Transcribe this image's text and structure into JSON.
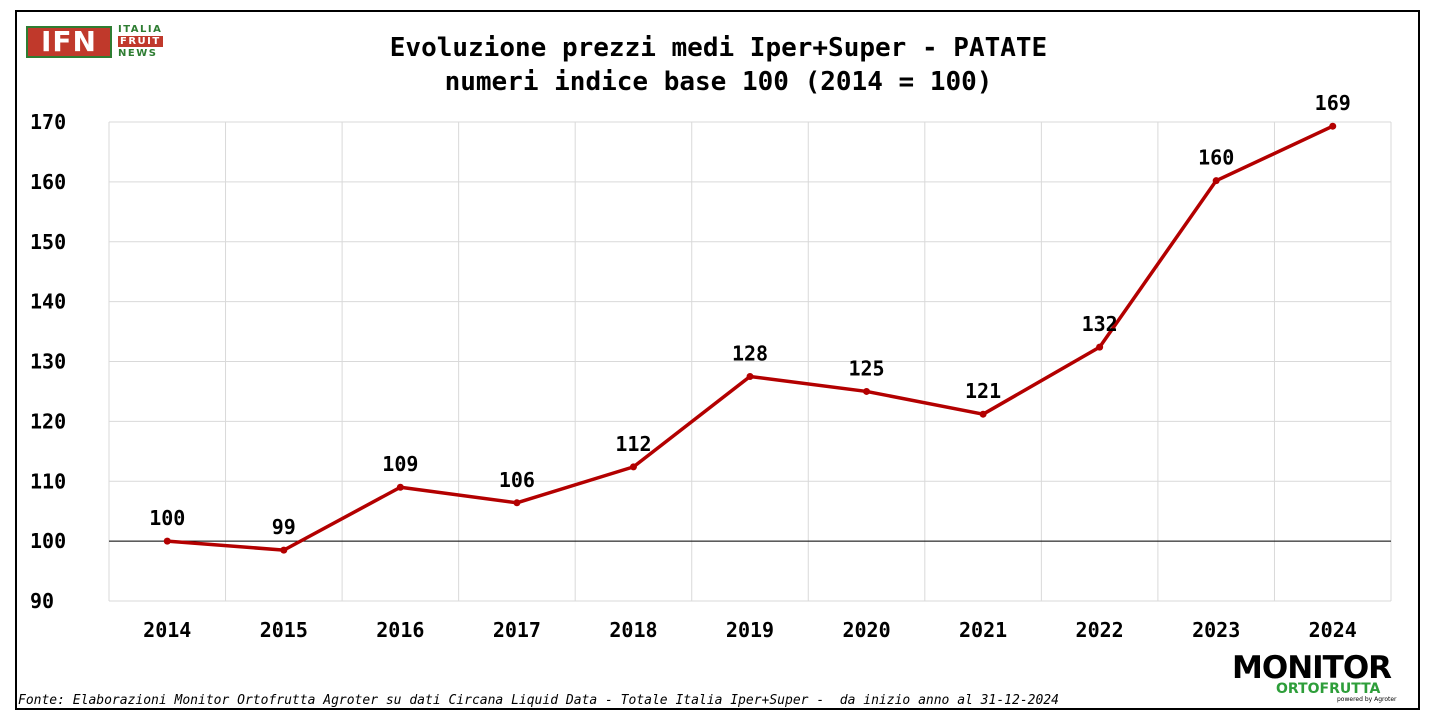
{
  "logo_left": {
    "main": "IFN",
    "line1": "ITALIA",
    "line2": "FRUIT",
    "line3": "NEWS"
  },
  "logo_right": {
    "main": "MONITOR",
    "sub": "ORTOFRUTTA",
    "tag": "powered by Agroter"
  },
  "footnote": "Fonte: Elaborazioni Monitor Ortofrutta Agroter su dati Circana Liquid Data - Totale Italia Iper+Super -  da inizio anno al 31-12-2024",
  "chart_data": {
    "type": "line",
    "title": "Evoluzione prezzi medi Iper+Super - PATATE",
    "subtitle": "numeri indice base 100 (2014 = 100)",
    "xlabel": "",
    "ylabel": "",
    "ylim": [
      90,
      170
    ],
    "yticks": [
      "170",
      "160",
      "150",
      "140",
      "130",
      "120",
      "110",
      "100",
      "90"
    ],
    "grid": true,
    "reference_line": 100,
    "categories": [
      "2014",
      "2015",
      "2016",
      "2017",
      "2018",
      "2019",
      "2020",
      "2021",
      "2022",
      "2023",
      "2024"
    ],
    "series": [
      {
        "color": "#b30000",
        "values": [
          100,
          98.5,
          109,
          106.4,
          112.4,
          127.5,
          125,
          121.2,
          132.4,
          160.2,
          169.3
        ],
        "labels": [
          "100",
          "99",
          "109",
          "106",
          "112",
          "128",
          "125",
          "121",
          "132",
          "160",
          "169"
        ]
      }
    ]
  }
}
